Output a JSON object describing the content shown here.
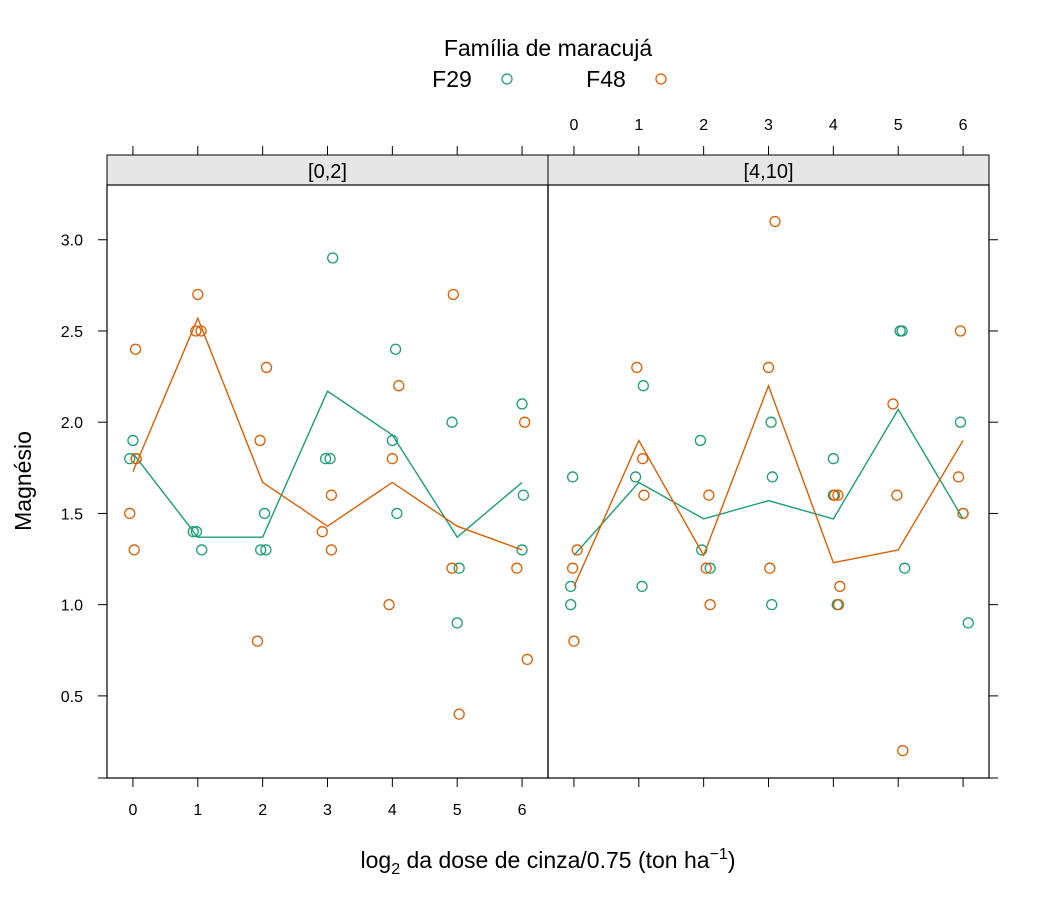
{
  "chart_data": {
    "type": "scatter",
    "legend": {
      "title": "Família de maracujá",
      "placement": "top",
      "entries": [
        {
          "name": "F29",
          "color": "#1B9E77"
        },
        {
          "name": "F48",
          "color": "#D95F02"
        }
      ]
    },
    "xlabel_main": "log",
    "xlabel_sub": "2",
    "xlabel_rest": " da dose de cinza/0.75 (ton ha",
    "xlabel_sup": "−1",
    "xlabel_close": ")",
    "ylabel": "Magnésio",
    "xlim": [
      -0.4,
      6.4
    ],
    "ylim": [
      0.05,
      3.3
    ],
    "xticks": [
      "0",
      "1",
      "2",
      "3",
      "4",
      "5",
      "6"
    ],
    "yticks": [
      "0.5",
      "1.0",
      "1.5",
      "2.0",
      "2.5",
      "3.0"
    ],
    "grid": false,
    "panels": [
      {
        "label": "[0,2]",
        "series": [
          {
            "name": "F29",
            "points": [
              [
                -0.05,
                1.8
              ],
              [
                0,
                1.9
              ],
              [
                0.05,
                1.8
              ],
              [
                0.93,
                1.4
              ],
              [
                0.98,
                1.4
              ],
              [
                1.06,
                1.3
              ],
              [
                1.97,
                1.3
              ],
              [
                2.03,
                1.5
              ],
              [
                2.05,
                1.3
              ],
              [
                2.97,
                1.8
              ],
              [
                3.04,
                1.8
              ],
              [
                3.08,
                2.9
              ],
              [
                4.0,
                1.9
              ],
              [
                4.05,
                2.4
              ],
              [
                4.07,
                1.5
              ],
              [
                4.92,
                2.0
              ],
              [
                5.0,
                0.9
              ],
              [
                5.03,
                1.2
              ],
              [
                6.0,
                2.1
              ],
              [
                6.02,
                1.6
              ],
              [
                6.0,
                1.3
              ]
            ],
            "line": [
              1.83,
              1.37,
              1.37,
              2.17,
              1.93,
              1.37,
              1.67
            ]
          },
          {
            "name": "F48",
            "points": [
              [
                -0.05,
                1.5
              ],
              [
                0.02,
                1.3
              ],
              [
                0.04,
                2.4
              ],
              [
                0.05,
                1.8
              ],
              [
                0.97,
                2.5
              ],
              [
                1.0,
                2.7
              ],
              [
                1.05,
                2.5
              ],
              [
                1.92,
                0.8
              ],
              [
                1.96,
                1.9
              ],
              [
                2.06,
                2.3
              ],
              [
                2.92,
                1.4
              ],
              [
                3.06,
                1.3
              ],
              [
                3.06,
                1.6
              ],
              [
                3.95,
                1.0
              ],
              [
                4.0,
                1.8
              ],
              [
                4.1,
                2.2
              ],
              [
                4.92,
                1.2
              ],
              [
                4.94,
                2.7
              ],
              [
                5.03,
                0.4
              ],
              [
                5.92,
                1.2
              ],
              [
                6.04,
                2.0
              ],
              [
                6.08,
                0.7
              ]
            ],
            "line": [
              1.73,
              2.57,
              1.67,
              1.43,
              1.67,
              1.43,
              1.3
            ]
          }
        ]
      },
      {
        "label": "[4,10]",
        "series": [
          {
            "name": "F29",
            "points": [
              [
                -0.05,
                1.1
              ],
              [
                -0.05,
                1.0
              ],
              [
                -0.02,
                1.7
              ],
              [
                0.95,
                1.7
              ],
              [
                1.05,
                1.1
              ],
              [
                1.07,
                2.2
              ],
              [
                1.95,
                1.9
              ],
              [
                1.97,
                1.3
              ],
              [
                2.1,
                1.2
              ],
              [
                3.05,
                1.0
              ],
              [
                3.06,
                1.7
              ],
              [
                3.04,
                2.0
              ],
              [
                4.0,
                1.8
              ],
              [
                4.0,
                1.6
              ],
              [
                4.06,
                1.0
              ],
              [
                5.03,
                2.5
              ],
              [
                5.06,
                2.5
              ],
              [
                5.1,
                1.2
              ],
              [
                5.96,
                2.0
              ],
              [
                6.0,
                1.5
              ],
              [
                6.08,
                0.9
              ]
            ],
            "line": [
              1.27,
              1.67,
              1.47,
              1.57,
              1.47,
              2.07,
              1.47
            ]
          },
          {
            "name": "F48",
            "points": [
              [
                -0.02,
                1.2
              ],
              [
                0.05,
                1.3
              ],
              [
                0.0,
                0.8
              ],
              [
                0.97,
                2.3
              ],
              [
                1.06,
                1.8
              ],
              [
                1.08,
                1.6
              ],
              [
                2.04,
                1.2
              ],
              [
                2.08,
                1.6
              ],
              [
                2.1,
                1.0
              ],
              [
                3.02,
                1.2
              ],
              [
                3.0,
                2.3
              ],
              [
                3.1,
                3.1
              ],
              [
                4.02,
                1.6
              ],
              [
                4.08,
                1.0
              ],
              [
                4.1,
                1.1
              ],
              [
                4.07,
                1.6
              ],
              [
                4.92,
                2.1
              ],
              [
                4.98,
                1.6
              ],
              [
                5.07,
                0.2
              ],
              [
                5.93,
                1.7
              ],
              [
                5.96,
                2.5
              ],
              [
                6.0,
                1.5
              ]
            ],
            "line": [
              1.1,
              1.9,
              1.27,
              2.2,
              1.23,
              1.3,
              1.9
            ]
          }
        ]
      }
    ]
  }
}
